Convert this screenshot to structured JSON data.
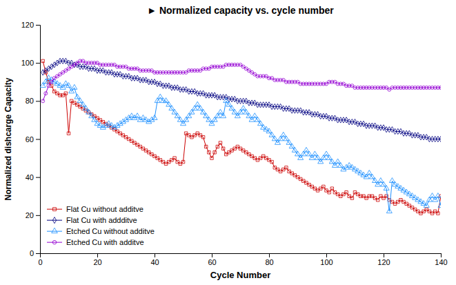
{
  "chart_data": {
    "type": "line",
    "title": "► Normalized capacity vs. cycle number",
    "x_label": "Cycle Number",
    "y_label": "Normalized dishcarge Capacity",
    "xlim": [
      0,
      140
    ],
    "ylim": [
      0,
      120
    ],
    "xticks": [
      0,
      20,
      40,
      60,
      80,
      100,
      120,
      140
    ],
    "yticks": [
      0,
      20,
      40,
      60,
      80,
      100,
      120
    ],
    "grid": false,
    "legend": "lower left",
    "x": [
      1,
      2,
      3,
      4,
      5,
      6,
      7,
      8,
      9,
      10,
      11,
      12,
      13,
      14,
      15,
      16,
      17,
      18,
      19,
      20,
      21,
      22,
      23,
      24,
      25,
      26,
      27,
      28,
      29,
      30,
      31,
      32,
      33,
      34,
      35,
      36,
      37,
      38,
      39,
      40,
      41,
      42,
      43,
      44,
      45,
      46,
      47,
      48,
      49,
      50,
      51,
      52,
      53,
      54,
      55,
      56,
      57,
      58,
      59,
      60,
      61,
      62,
      63,
      64,
      65,
      66,
      67,
      68,
      69,
      70,
      71,
      72,
      73,
      74,
      75,
      76,
      77,
      78,
      79,
      80,
      81,
      82,
      83,
      84,
      85,
      86,
      87,
      88,
      89,
      90,
      91,
      92,
      93,
      94,
      95,
      96,
      97,
      98,
      99,
      100,
      101,
      102,
      103,
      104,
      105,
      106,
      107,
      108,
      109,
      110,
      111,
      112,
      113,
      114,
      115,
      116,
      117,
      118,
      119,
      120,
      121,
      122,
      123,
      124,
      125,
      126,
      127,
      128,
      129,
      130,
      131,
      132,
      133,
      134,
      135,
      136,
      137,
      138,
      139,
      140
    ],
    "series": [
      {
        "name": "Flat Cu without additve",
        "color": "#cc0000",
        "marker": "square",
        "values": [
          101,
          95,
          90,
          88,
          85,
          84,
          83,
          83,
          84,
          63,
          80,
          79,
          78,
          77,
          76,
          75,
          74,
          73,
          72,
          71,
          70,
          69,
          68,
          67,
          66,
          65,
          64,
          63,
          62,
          61,
          60,
          59,
          58,
          57,
          56,
          55,
          54,
          53,
          52,
          51,
          50,
          49,
          48,
          47,
          48,
          49,
          50,
          48,
          47,
          48,
          63,
          62,
          61,
          62,
          63,
          62,
          61,
          56,
          53,
          50,
          53,
          56,
          58,
          55,
          52,
          53,
          54,
          55,
          56,
          55,
          54,
          53,
          52,
          51,
          50,
          49,
          50,
          51,
          50,
          49,
          48,
          45,
          44,
          43,
          44,
          45,
          43,
          42,
          41,
          40,
          39,
          38,
          37,
          36,
          35,
          34,
          33,
          34,
          35,
          33,
          32,
          34,
          32,
          31,
          30,
          31,
          32,
          30,
          29,
          32,
          31,
          30,
          30,
          29,
          30,
          30,
          29,
          28,
          30,
          29,
          30,
          28,
          27,
          26,
          27,
          28,
          27,
          26,
          25,
          24,
          23,
          22,
          21,
          22,
          23,
          22,
          21,
          22,
          21,
          30
        ]
      },
      {
        "name": "Flat Cu with addditve",
        "color": "#000080",
        "marker": "diamond",
        "values": [
          95,
          96,
          97,
          98,
          99,
          100,
          101,
          101,
          101,
          100,
          100,
          99,
          99,
          98,
          98,
          98,
          97,
          97,
          97,
          96,
          96,
          96,
          95,
          95,
          95,
          94,
          94,
          94,
          93,
          93,
          93,
          92,
          92,
          92,
          91,
          91,
          91,
          90,
          90,
          90,
          89,
          89,
          88,
          88,
          88,
          87,
          87,
          87,
          86,
          86,
          86,
          85,
          85,
          85,
          84,
          84,
          84,
          83,
          83,
          83,
          83,
          82,
          82,
          82,
          82,
          81,
          81,
          81,
          80,
          80,
          80,
          80,
          79,
          79,
          79,
          78,
          78,
          78,
          78,
          78,
          77,
          77,
          77,
          77,
          76,
          76,
          76,
          75,
          75,
          75,
          75,
          74,
          74,
          74,
          73,
          73,
          73,
          72,
          72,
          72,
          71,
          71,
          71,
          70,
          70,
          70,
          70,
          69,
          69,
          69,
          68,
          68,
          68,
          67,
          67,
          67,
          67,
          66,
          66,
          66,
          65,
          65,
          65,
          64,
          64,
          64,
          63,
          63,
          63,
          62,
          62,
          62,
          61,
          61,
          61,
          60,
          60,
          60,
          60,
          60
        ]
      },
      {
        "name": "Etched Cu without additve",
        "color": "#1e90ff",
        "marker": "triangle",
        "values": [
          88,
          90,
          92,
          91,
          90,
          89,
          88,
          87,
          89,
          88,
          85,
          87,
          82,
          80,
          78,
          76,
          74,
          72,
          70,
          68,
          67,
          66,
          67,
          68,
          67,
          66,
          67,
          68,
          69,
          70,
          71,
          72,
          71,
          72,
          70,
          71,
          70,
          69,
          70,
          71,
          80,
          82,
          80,
          80,
          78,
          76,
          74,
          72,
          70,
          68,
          70,
          72,
          74,
          76,
          78,
          76,
          74,
          72,
          70,
          68,
          70,
          72,
          74,
          72,
          80,
          78,
          76,
          74,
          72,
          74,
          76,
          74,
          72,
          70,
          72,
          70,
          68,
          66,
          65,
          64,
          62,
          60,
          58,
          60,
          62,
          60,
          58,
          56,
          54,
          52,
          50,
          52,
          54,
          52,
          50,
          52,
          50,
          48,
          50,
          52,
          50,
          48,
          46,
          48,
          46,
          44,
          45,
          46,
          45,
          44,
          43,
          42,
          41,
          40,
          42,
          40,
          38,
          36,
          38,
          36,
          34,
          22,
          38,
          36,
          35,
          34,
          33,
          32,
          31,
          30,
          29,
          28,
          27,
          26,
          25,
          28,
          30,
          28,
          30,
          25
        ]
      },
      {
        "name": "Etched Cu with additve",
        "color": "#9400d3",
        "marker": "circle",
        "values": [
          80,
          84,
          88,
          90,
          92,
          93,
          94,
          95,
          96,
          97,
          98,
          99,
          100,
          101,
          101,
          100,
          100,
          100,
          100,
          100,
          99,
          99,
          99,
          99,
          99,
          99,
          98,
          98,
          98,
          98,
          97,
          97,
          97,
          97,
          96,
          96,
          96,
          96,
          96,
          95,
          95,
          95,
          95,
          95,
          95,
          95,
          95,
          95,
          95,
          95,
          95,
          96,
          96,
          96,
          96,
          96,
          97,
          97,
          97,
          98,
          98,
          98,
          98,
          98,
          99,
          99,
          99,
          99,
          99,
          99,
          98,
          97,
          96,
          95,
          94,
          93,
          93,
          93,
          93,
          92,
          92,
          91,
          91,
          91,
          91,
          90,
          90,
          90,
          90,
          90,
          89,
          89,
          89,
          89,
          89,
          89,
          89,
          89,
          89,
          89,
          90,
          90,
          90,
          89,
          89,
          89,
          88,
          88,
          88,
          87,
          87,
          87,
          87,
          87,
          87,
          87,
          87,
          87,
          87,
          87,
          87,
          86,
          87,
          87,
          87,
          87,
          87,
          87,
          87,
          87,
          87,
          87,
          87,
          87,
          87,
          87,
          87,
          87,
          87,
          87
        ]
      }
    ]
  }
}
